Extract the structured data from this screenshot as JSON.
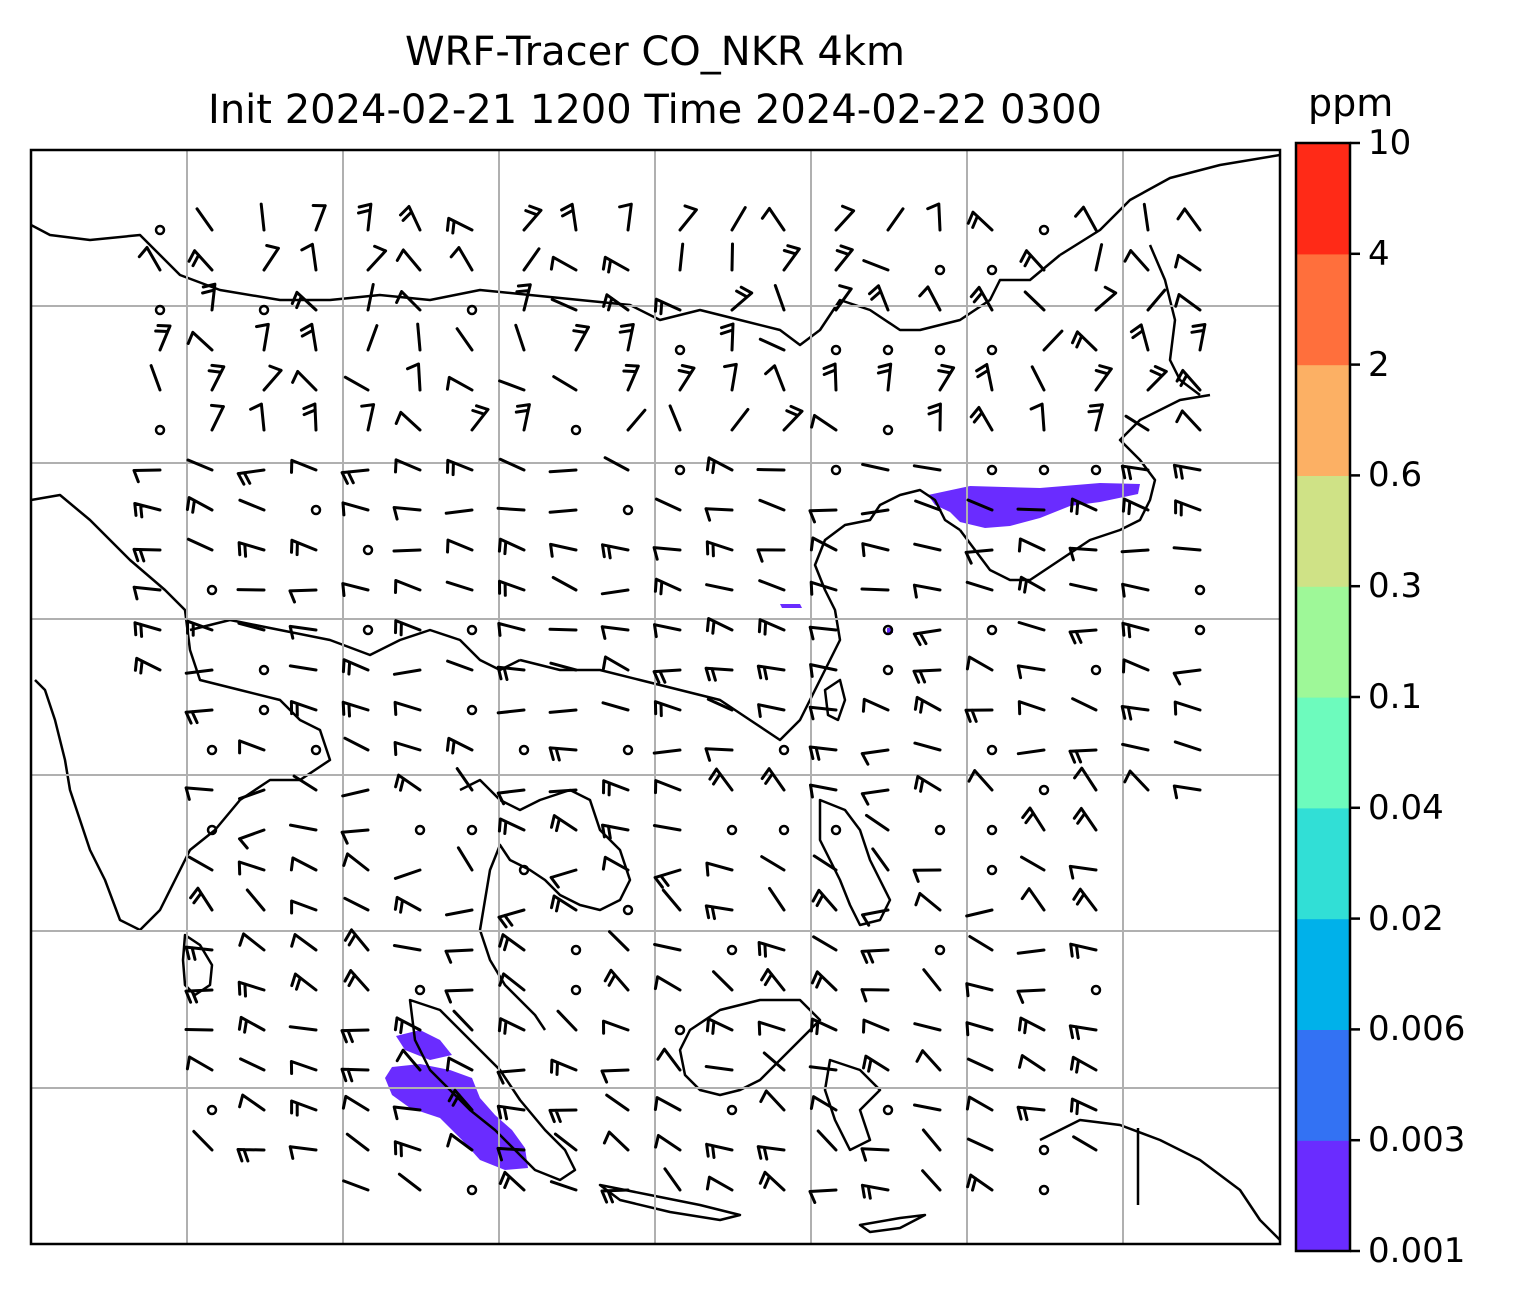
{
  "title_line1": "WRF-Tracer CO_NKR 4km",
  "title_line2": "Init 2024-02-21 1200 Time 2024-02-22 0300",
  "colorbar": {
    "unit": "ppm",
    "tick_labels": [
      "0.001",
      "0.003",
      "0.006",
      "0.02",
      "0.04",
      "0.1",
      "0.3",
      "0.6",
      "2",
      "4",
      "10"
    ],
    "colors": [
      "#6a2cff",
      "#3372f3",
      "#00b1ea",
      "#31dfd6",
      "#6dfbbd",
      "#9ef898",
      "#cfe286",
      "#fcb064",
      "#ff6f3c",
      "#ff2a17"
    ]
  },
  "map": {
    "coastline_color": "#000000",
    "gridline_color": "#b0b0b0",
    "tracer_fill_color": "#6a2cff",
    "wind_barb_color": "#000000",
    "features": [
      "coastlines",
      "country-borders",
      "lat-lon-gridlines",
      "wind-barbs",
      "tracer-contours"
    ]
  }
}
